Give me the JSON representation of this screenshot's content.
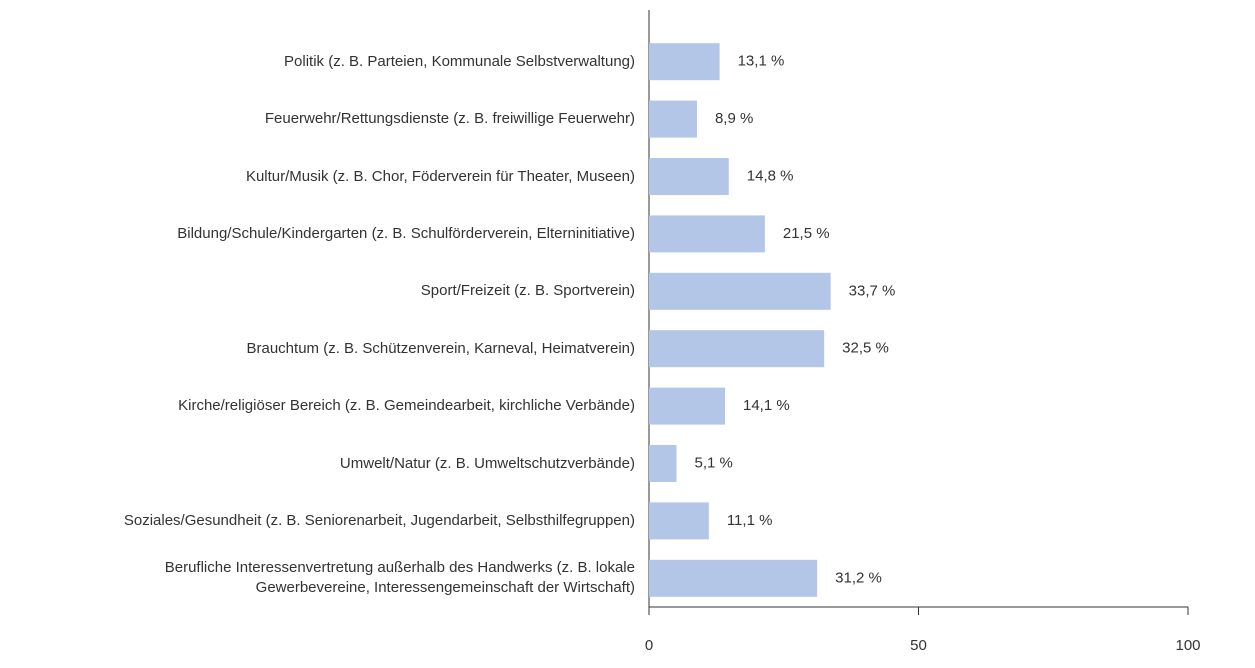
{
  "chart_data": {
    "type": "bar",
    "orientation": "horizontal",
    "categories": [
      "Politik (z. B. Parteien, Kommunale Selbstverwaltung)",
      "Feuerwehr/Rettungsdienste (z. B. freiwillige Feuerwehr)",
      "Kultur/Musik (z. B. Chor, Föderverein für Theater, Museen)",
      "Bildung/Schule/Kindergarten (z. B. Schulförderverein, Elterninitiative)",
      "Sport/Freizeit (z. B. Sportverein)",
      "Brauchtum (z. B. Schützenverein, Karneval, Heimatverein)",
      "Kirche/religiöser Bereich (z. B. Gemeindearbeit, kirchliche Verbände)",
      "Umwelt/Natur (z. B. Umweltschutzverbände)",
      "Soziales/Gesundheit (z. B. Seniorenarbeit, Jugendarbeit, Selbsthilfegruppen)",
      "Berufliche Interessenvertretung außerhalb des Handwerks (z. B. lokale\nGewerbevereine, Interessengemeinschaft der Wirtschaft)"
    ],
    "values": [
      13.1,
      8.9,
      14.8,
      21.5,
      33.7,
      32.5,
      14.1,
      5.1,
      11.1,
      31.2
    ],
    "value_labels": [
      "13,1 %",
      "8,9 %",
      "14,8 %",
      "21,5 %",
      "33,7 %",
      "32,5 %",
      "14,1 %",
      "5,1 %",
      "11,1 %",
      "31,2 %"
    ],
    "color": "#b4c6e7",
    "xlim": [
      0,
      100
    ],
    "xticks": [
      0,
      50,
      100
    ]
  }
}
